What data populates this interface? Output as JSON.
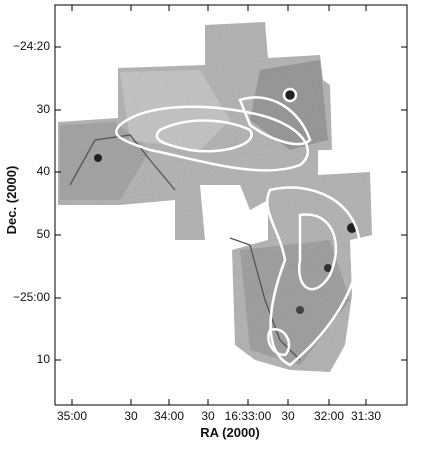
{
  "figure": {
    "x_axis": {
      "label": "RA (2000)",
      "ticks": [
        "35:00",
        "30",
        "34:00",
        "30",
        "16:33:00",
        "30",
        "32:00",
        "31:30"
      ]
    },
    "y_axis": {
      "label": "Dec. (2000)",
      "ticks": [
        "−24:20",
        "30",
        "40",
        "50",
        "−25:00",
        "10"
      ]
    }
  }
}
